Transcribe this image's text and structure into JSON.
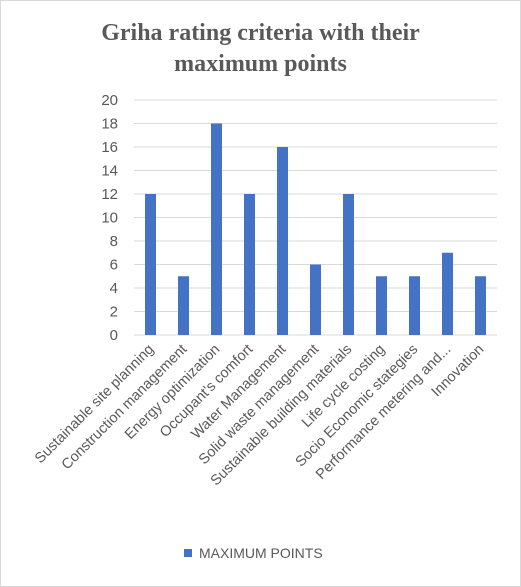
{
  "chart_data": {
    "type": "bar",
    "title_lines": [
      "Griha rating criteria with their",
      "maximum points"
    ],
    "categories": [
      "Sustainable site planning",
      "Construction management",
      "Energy optimization",
      "Occupant's comfort",
      "Water Management",
      "Solid waste management",
      "Sustainable building materials",
      "Life cycle costing",
      "Socio Economic stategies",
      "Performance metering and...",
      "Innovation"
    ],
    "series": [
      {
        "name": "MAXIMUM POINTS",
        "values": [
          12,
          5,
          18,
          12,
          16,
          6,
          12,
          5,
          5,
          7,
          5
        ],
        "color": "#4472c4"
      }
    ],
    "ylim": [
      0,
      20
    ],
    "yticks": [
      "0",
      "2",
      "4",
      "6",
      "8",
      "10",
      "12",
      "14",
      "16",
      "18",
      "20"
    ],
    "grid": true,
    "gridColor": "#d9d9d9",
    "legend_position": "bottom"
  }
}
